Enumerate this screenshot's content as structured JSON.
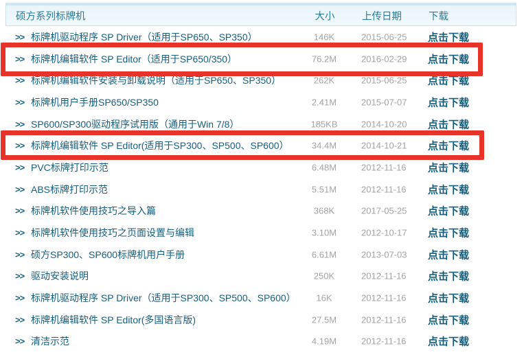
{
  "header": {
    "title": "硕方系列标牌机",
    "col_size": "大小",
    "col_date": "上传日期",
    "col_download": "下载"
  },
  "icons": {
    "chevron": ">>"
  },
  "rows": [
    {
      "title": "标牌机驱动程序 SP Driver（适用于SP650、SP350）",
      "size": "146K",
      "date": "2015-06-25",
      "download": "点击下载",
      "highlighted": false
    },
    {
      "title": "标牌机编辑软件 SP Editor（适用于SP650/350）",
      "size": "76.2M",
      "date": "2016-02-29",
      "download": "点击下载",
      "highlighted": true
    },
    {
      "title": "标牌机编辑软件安装与卸载说明（适用于SP650、SP350）",
      "size": "262K",
      "date": "2015-06-25",
      "download": "点击下载",
      "highlighted": false
    },
    {
      "title": "标牌机用户手册SP650/SP350",
      "size": "2.41M",
      "date": "2015-07-07",
      "download": "点击下载",
      "highlighted": false
    },
    {
      "title": "SP600/SP300驱动程序试用版（通用于Win 7/8）",
      "size": "185KB",
      "date": "2014-10-20",
      "download": "点击下载",
      "highlighted": false
    },
    {
      "title": "标牌机编辑软件 SP Editor(适用于SP300、SP500、SP600）",
      "size": "34.4M",
      "date": "2014-10-21",
      "download": "点击下载",
      "highlighted": true
    },
    {
      "title": "PVC标牌打印示范",
      "size": "6.48M",
      "date": "2012-11-16",
      "download": "点击下载",
      "highlighted": false
    },
    {
      "title": "ABS标牌打印示范",
      "size": "5.51M",
      "date": "2012-11-16",
      "download": "点击下载",
      "highlighted": false
    },
    {
      "title": "标牌机软件使用技巧之导入篇",
      "size": "368K",
      "date": "2017-05-25",
      "download": "点击下载",
      "highlighted": false
    },
    {
      "title": "标牌机软件使用技巧之页面设置与编辑",
      "size": "3.10M",
      "date": "2012-10-17",
      "download": "点击下载",
      "highlighted": false
    },
    {
      "title": "硕方SP300、SP600标牌机用户手册",
      "size": "6.61M",
      "date": "2013-07-03",
      "download": "点击下载",
      "highlighted": false
    },
    {
      "title": "驱动安装说明",
      "size": "250K",
      "date": "2012-11-16",
      "download": "点击下载",
      "highlighted": false
    },
    {
      "title": "标牌机驱动程序 SP Driver（适用于SP300、SP500、SP600）",
      "size": "16K",
      "date": "2012-11-16",
      "download": "点击下载",
      "highlighted": false
    },
    {
      "title": "标牌机编辑软件 SP Editor(多国语言版)",
      "size": "27.5M",
      "date": "2012-11-16",
      "download": "点击下载",
      "highlighted": false
    },
    {
      "title": "清洁示范",
      "size": "4.19M",
      "date": "2012-11-16",
      "download": "点击下载",
      "highlighted": false
    }
  ],
  "colors": {
    "title_teal": "#175f7e",
    "header_teal": "#2b7d9d",
    "muted_gray": "#a4a4a4",
    "header_bg": "#eef7fb",
    "header_border": "#c9dfe9",
    "highlight_red": "#e8332b"
  }
}
